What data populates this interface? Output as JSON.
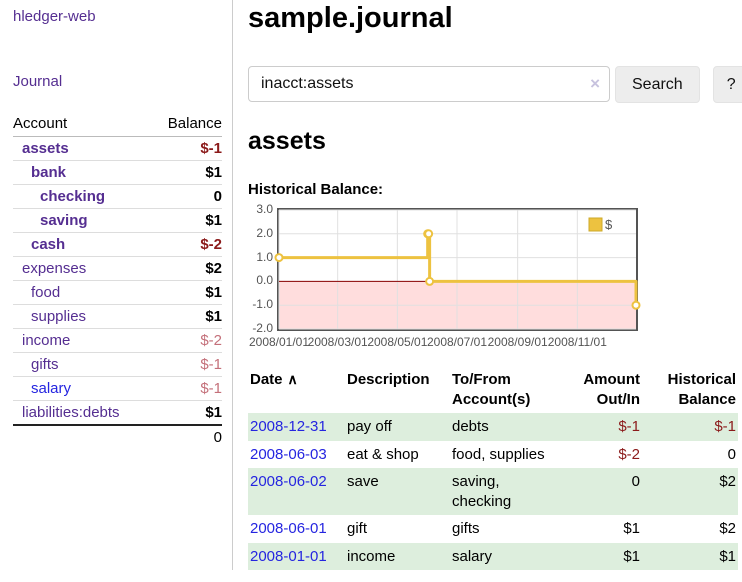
{
  "app": {
    "title": "hledger-web"
  },
  "icons": {
    "sort_asc": "∧",
    "clear": "×"
  },
  "colors": {
    "link_purple": "#552e91",
    "link_blue": "#2525e0",
    "negative_strong": "#8b1a1a",
    "negative_soft": "#c4707a",
    "row_green": "#ddeedd",
    "chart_line": "#edc240",
    "chart_negative_region": "#ffdddd",
    "chart_zero_line": "#8b0000",
    "chart_grid": "#e0e0e0",
    "chart_border": "#545454"
  },
  "sidebar": {
    "journal_label": "Journal",
    "accounts_table": {
      "headers": {
        "account": "Account",
        "balance": "Balance"
      },
      "rows": [
        {
          "label": "assets",
          "level": 1,
          "matched": true,
          "balance": "$-1",
          "negative": "strong"
        },
        {
          "label": "bank",
          "level": 2,
          "matched": true,
          "balance": "$1"
        },
        {
          "label": "checking",
          "level": 3,
          "matched": true,
          "balance": "0"
        },
        {
          "label": "saving",
          "level": 3,
          "matched": true,
          "balance": "$1"
        },
        {
          "label": "cash",
          "level": 2,
          "matched": true,
          "balance": "$-2",
          "negative": "strong"
        },
        {
          "label": "expenses",
          "level": 1,
          "matched": false,
          "balance": "$2"
        },
        {
          "label": "food",
          "level": 2,
          "matched": false,
          "balance": "$1"
        },
        {
          "label": "supplies",
          "level": 2,
          "matched": false,
          "balance": "$1"
        },
        {
          "label": "income",
          "level": 1,
          "matched": false,
          "balance": "$-2",
          "negative": "soft"
        },
        {
          "label": "gifts",
          "level": 2,
          "matched": false,
          "balance": "$-1",
          "negative": "soft"
        },
        {
          "label": "salary",
          "level": 2,
          "matched": false,
          "balance": "$-1",
          "negative": "soft",
          "unvisited": true
        },
        {
          "label": "liabilities:debts",
          "level": 1,
          "matched": false,
          "balance": "$1"
        }
      ],
      "total": "0"
    }
  },
  "header": {
    "title": "sample.journal"
  },
  "search": {
    "value": "inacct:assets",
    "button_label": "Search",
    "help_label": "?"
  },
  "account_page": {
    "heading": "assets",
    "chart_label": "Historical Balance:"
  },
  "chart_data": {
    "type": "line",
    "step": true,
    "title": "Historical Balance:",
    "series": [
      {
        "name": "$",
        "points": [
          [
            "2008-01-01",
            1
          ],
          [
            "2008-06-01",
            2
          ],
          [
            "2008-06-02",
            2
          ],
          [
            "2008-06-03",
            0
          ],
          [
            "2008-12-31",
            -1
          ]
        ]
      }
    ],
    "xlim": [
      "2008-01-01",
      "2008-12-31"
    ],
    "ylim": [
      -2,
      3
    ],
    "y_ticks": [
      "3.0",
      "2.0",
      "1.0",
      "0.0",
      "-1.0",
      "-2.0"
    ],
    "x_ticks": [
      "2008/01/01",
      "2008/03/01",
      "2008/05/01",
      "2008/07/01",
      "2008/09/01",
      "2008/11/01"
    ],
    "grid": true,
    "legend_position": "top-right",
    "legend": "$"
  },
  "transactions": {
    "columns": [
      {
        "label": "Date",
        "sorted": "asc"
      },
      {
        "label": "Description"
      },
      {
        "label": "To/From Account(s)"
      },
      {
        "label": "Amount Out/In",
        "align": "right"
      },
      {
        "label": "Historical Balance",
        "align": "right"
      }
    ],
    "rows": [
      {
        "date": "2008-12-31",
        "description": "pay off",
        "accounts": "debts",
        "amount": "$-1",
        "amount_negative": true,
        "balance": "$-1",
        "balance_negative": true,
        "shaded": true
      },
      {
        "date": "2008-06-03",
        "description": "eat & shop",
        "accounts": "food, supplies",
        "amount": "$-2",
        "amount_negative": true,
        "balance": "0",
        "shaded": false
      },
      {
        "date": "2008-06-02",
        "description": "save",
        "accounts": "saving, checking",
        "amount": "0",
        "balance": "$2",
        "shaded": true
      },
      {
        "date": "2008-06-01",
        "description": "gift",
        "accounts": "gifts",
        "amount": "$1",
        "balance": "$2",
        "shaded": false
      },
      {
        "date": "2008-01-01",
        "description": "income",
        "accounts": "salary",
        "amount": "$1",
        "balance": "$1",
        "shaded": true
      }
    ]
  }
}
